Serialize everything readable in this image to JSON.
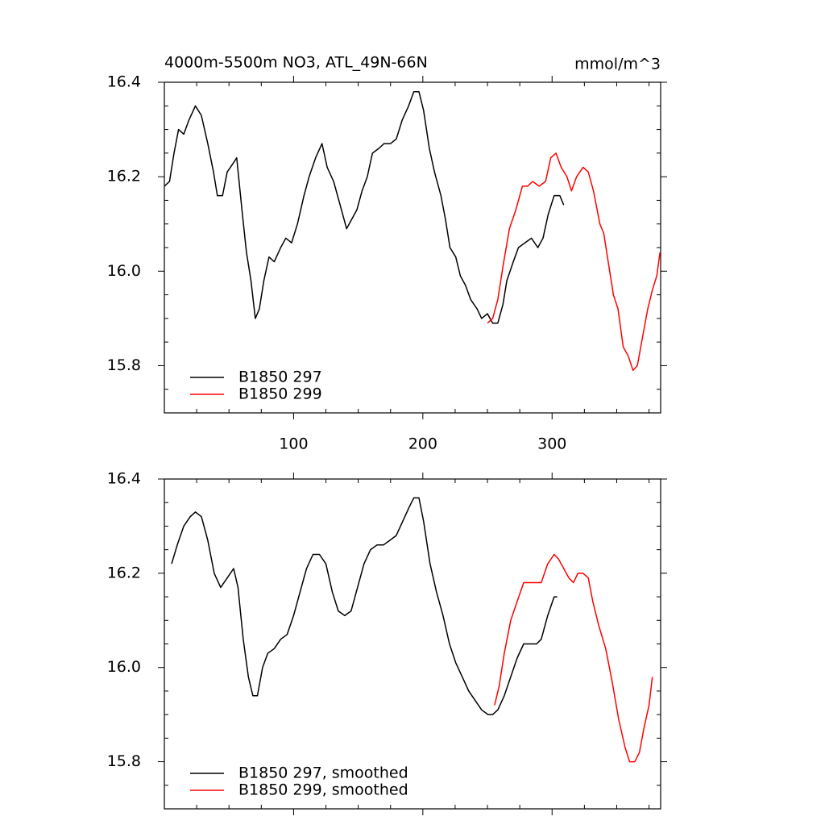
{
  "chart_data": [
    {
      "type": "line",
      "title": "4000m-5500m NO3, ATL_49N-66N",
      "units_label": "mmol/m^3",
      "xlim": [
        0,
        384
      ],
      "ylim": [
        15.7,
        16.4
      ],
      "xticks": [
        100,
        200,
        300
      ],
      "show_xtick_labels": true,
      "xminorticks": [
        25,
        50,
        75,
        125,
        150,
        175,
        225,
        250,
        275,
        325,
        350,
        375
      ],
      "yticks": [
        {
          "value": 15.8,
          "label": "15.8"
        },
        {
          "value": 16,
          "label": "16.0"
        },
        {
          "value": 16.2,
          "label": "16.2"
        },
        {
          "value": 16.4,
          "label": "16.4"
        }
      ],
      "yminorticks": [
        15.75,
        15.85,
        15.9,
        15.95,
        16.05,
        16.1,
        16.15,
        16.25,
        16.3,
        16.35
      ],
      "legend": "lower left",
      "series": [
        {
          "name": "B1850 297",
          "color": "#000000",
          "x": [
            0,
            4,
            7.5,
            11,
            15,
            19,
            24,
            28.6,
            33.6,
            38,
            41,
            45,
            48.6,
            53.6,
            56,
            60,
            63.5,
            67,
            70.4,
            73.5,
            77,
            81,
            85,
            90,
            94,
            98.4,
            103,
            108,
            112,
            117,
            122,
            126,
            131,
            136,
            141,
            145,
            149,
            153,
            157,
            161,
            166,
            170,
            175,
            179.5,
            184,
            189,
            193,
            197,
            200.6,
            205,
            209,
            214,
            217.5,
            221,
            225.5,
            229,
            233,
            237,
            242,
            245.5,
            250,
            254,
            258,
            262,
            265,
            270,
            274,
            279,
            284,
            289,
            293,
            297,
            301.6,
            306,
            309
          ],
          "values": [
            16.18,
            16.19,
            16.25,
            16.3,
            16.29,
            16.32,
            16.35,
            16.33,
            16.27,
            16.21,
            16.16,
            16.16,
            16.21,
            16.23,
            16.24,
            16.13,
            16.04,
            15.98,
            15.9,
            15.92,
            15.98,
            16.03,
            16.02,
            16.05,
            16.07,
            16.06,
            16.1,
            16.16,
            16.2,
            16.24,
            16.27,
            16.22,
            16.19,
            16.14,
            16.09,
            16.11,
            16.13,
            16.17,
            16.2,
            16.25,
            16.26,
            16.27,
            16.27,
            16.28,
            16.32,
            16.35,
            16.38,
            16.38,
            16.34,
            16.26,
            16.21,
            16.16,
            16.11,
            16.05,
            16.03,
            15.99,
            15.97,
            15.94,
            15.92,
            15.9,
            15.91,
            15.89,
            15.89,
            15.93,
            15.98,
            16.02,
            16.05,
            16.06,
            16.07,
            16.05,
            16.07,
            16.12,
            16.16,
            16.16,
            16.14
          ]
        },
        {
          "name": "B1850 299",
          "color": "#ff0000",
          "x": [
            250,
            254,
            258,
            262,
            267,
            272,
            277,
            281,
            285,
            290,
            295,
            299,
            303,
            307,
            311.5,
            315,
            319,
            324,
            328,
            332,
            337,
            340,
            344,
            347.5,
            351,
            355,
            359,
            362.6,
            366,
            370,
            374,
            377.6,
            381,
            383.5
          ],
          "values": [
            15.89,
            15.9,
            15.94,
            16.01,
            16.09,
            16.13,
            16.18,
            16.18,
            16.19,
            16.18,
            16.19,
            16.24,
            16.25,
            16.22,
            16.2,
            16.17,
            16.2,
            16.22,
            16.21,
            16.17,
            16.1,
            16.08,
            16.01,
            15.95,
            15.92,
            15.84,
            15.82,
            15.79,
            15.8,
            15.86,
            15.92,
            15.96,
            15.99,
            16.04
          ]
        }
      ]
    },
    {
      "type": "line",
      "xlim": [
        0,
        384
      ],
      "ylim": [
        15.7,
        16.4
      ],
      "xticks": [
        100,
        200,
        300
      ],
      "show_xtick_labels": false,
      "xminorticks": [
        25,
        50,
        75,
        125,
        150,
        175,
        225,
        250,
        275,
        325,
        350,
        375
      ],
      "yticks": [
        {
          "value": 15.8,
          "label": "15.8"
        },
        {
          "value": 16,
          "label": "16.0"
        },
        {
          "value": 16.2,
          "label": "16.2"
        },
        {
          "value": 16.4,
          "label": "16.4"
        }
      ],
      "yminorticks": [
        15.75,
        15.85,
        15.9,
        15.95,
        16.05,
        16.1,
        16.15,
        16.25,
        16.3,
        16.35
      ],
      "legend": "lower left",
      "series": [
        {
          "name": "B1850 297, smoothed",
          "color": "#000000",
          "x": [
            5.6,
            10,
            15,
            20,
            24,
            28.7,
            33.6,
            38.6,
            43.6,
            48.6,
            53.6,
            57,
            61,
            65,
            68.5,
            72,
            76,
            80,
            85,
            90,
            95,
            100,
            105,
            110,
            115,
            120,
            125,
            130,
            134.6,
            139.6,
            144.5,
            149.5,
            154.5,
            159.5,
            164.5,
            169.5,
            174.5,
            179.4,
            184.4,
            189.4,
            193,
            197,
            200.6,
            205.6,
            210.6,
            215.6,
            220.6,
            225.5,
            230.5,
            235.5,
            240.5,
            245.5,
            250.5,
            254,
            258,
            263,
            268,
            273,
            278,
            283,
            288,
            291.6,
            296.6,
            301.6,
            304
          ],
          "values": [
            16.22,
            16.26,
            16.3,
            16.32,
            16.33,
            16.32,
            16.27,
            16.2,
            16.17,
            16.19,
            16.21,
            16.17,
            16.06,
            15.98,
            15.94,
            15.94,
            16.0,
            16.03,
            16.04,
            16.06,
            16.07,
            16.11,
            16.16,
            16.21,
            16.24,
            16.24,
            16.22,
            16.16,
            16.12,
            16.11,
            16.12,
            16.17,
            16.22,
            16.25,
            16.26,
            16.26,
            16.27,
            16.28,
            16.31,
            16.34,
            16.36,
            16.36,
            16.31,
            16.22,
            16.16,
            16.11,
            16.05,
            16.01,
            15.98,
            15.95,
            15.93,
            15.91,
            15.9,
            15.9,
            15.91,
            15.94,
            15.98,
            16.02,
            16.05,
            16.05,
            16.05,
            16.06,
            16.11,
            16.15,
            16.15
          ]
        },
        {
          "name": "B1850 299, smoothed",
          "color": "#ff0000",
          "x": [
            255.5,
            259,
            263,
            268,
            273,
            278,
            283,
            288,
            291.6,
            296.6,
            301.6,
            305,
            309,
            313,
            316.5,
            320,
            324,
            328,
            331.5,
            336,
            341.5,
            346.5,
            351.5,
            356.5,
            360,
            364,
            367.6,
            371,
            375,
            377.6
          ],
          "values": [
            15.92,
            15.96,
            16.03,
            16.1,
            16.14,
            16.18,
            16.18,
            16.18,
            16.18,
            16.22,
            16.24,
            16.23,
            16.21,
            16.19,
            16.18,
            16.2,
            16.2,
            16.19,
            16.14,
            16.09,
            16.04,
            15.97,
            15.89,
            15.83,
            15.8,
            15.8,
            15.82,
            15.87,
            15.92,
            15.98
          ]
        }
      ]
    }
  ]
}
